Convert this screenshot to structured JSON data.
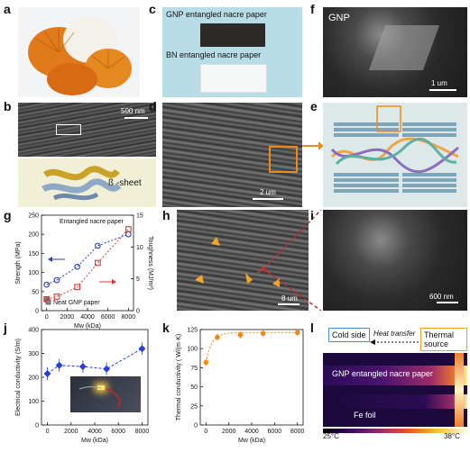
{
  "panels": {
    "a": "a",
    "b": "b",
    "c": "c",
    "d": "d",
    "e": "e",
    "f": "f",
    "g": "g",
    "h": "h",
    "i": "i",
    "j": "j",
    "k": "k",
    "l": "l"
  },
  "panel_b": {
    "scale": "500 nm",
    "sheet_label": "ß -sheet"
  },
  "panel_c": {
    "gnp_label": "GNP entangled nacre paper",
    "bn_label": "BN entangled nacre paper"
  },
  "panel_d": {
    "scale": "2 um"
  },
  "panel_f": {
    "tag": "GNP",
    "scale": "1 um"
  },
  "panel_h": {
    "scale": "8 um"
  },
  "panel_i": {
    "scale": "600 nm"
  },
  "panel_l": {
    "cold_side": "Cold side",
    "heat_transfer": "Heat transfer",
    "thermal_source": "Thermal source",
    "gnp_label": "GNP entangled nacre paper",
    "fe_label": "Fe foil",
    "scale_min": "25°C",
    "scale_max": "38°C"
  },
  "chart_data": [
    {
      "type": "scatter",
      "panel": "g",
      "xlabel": "Mw (kDa)",
      "ylabel": "Strength (MPa)",
      "y2label": "Toughness (MJ/m³)",
      "xlim": [
        -500,
        8500
      ],
      "xticks": [
        0,
        2000,
        4000,
        6000,
        8000
      ],
      "ylim": [
        0,
        250
      ],
      "yticks": [
        0,
        50,
        100,
        150,
        200,
        250
      ],
      "y2lim": [
        0,
        15
      ],
      "y2ticks": [
        0,
        5,
        10,
        15
      ],
      "series": [
        {
          "name": "Entangled nacre paper",
          "axis": "left",
          "color": "#2e3fb5",
          "x": [
            0,
            1000,
            3000,
            5000,
            8000
          ],
          "y": [
            68,
            80,
            115,
            170,
            200
          ]
        },
        {
          "name": "Entangled nacre paper",
          "axis": "right",
          "color": "#d23a3a",
          "x": [
            0,
            1000,
            3000,
            5000,
            8000
          ],
          "y": [
            1.8,
            2.2,
            3.7,
            7.5,
            12.8
          ]
        }
      ],
      "neat": {
        "name": "Neat GNP paper",
        "x": [
          0,
          0
        ],
        "y_left": [
          30,
          68
        ],
        "y_right": [
          1.8,
          2.0
        ]
      },
      "legend": [
        "Entangled nacre paper",
        "Neat GNP paper"
      ]
    },
    {
      "type": "line",
      "panel": "j",
      "xlabel": "Mw (kDa)",
      "ylabel": "Electrical conductivity (S/m)",
      "xlim": [
        -500,
        8500
      ],
      "xticks": [
        0,
        2000,
        4000,
        6000,
        8000
      ],
      "ylim": [
        0,
        400
      ],
      "yticks": [
        0,
        100,
        200,
        300,
        400
      ],
      "color": "#2a3fd6",
      "x": [
        0,
        1000,
        3000,
        5000,
        8000
      ],
      "y": [
        215,
        250,
        245,
        235,
        320
      ]
    },
    {
      "type": "line",
      "panel": "k",
      "xlabel": "Mw (kDa)",
      "ylabel": "Thermal conductivity ( W/(m·K)",
      "xlim": [
        -500,
        8500
      ],
      "xticks": [
        0,
        2000,
        4000,
        6000,
        8000
      ],
      "ylim": [
        0,
        125
      ],
      "yticks": [
        0,
        25,
        50,
        75,
        100,
        125
      ],
      "color": "#f08a16",
      "x": [
        0,
        1000,
        3000,
        5000,
        8000
      ],
      "y": [
        82,
        115,
        118,
        120,
        121
      ]
    }
  ]
}
